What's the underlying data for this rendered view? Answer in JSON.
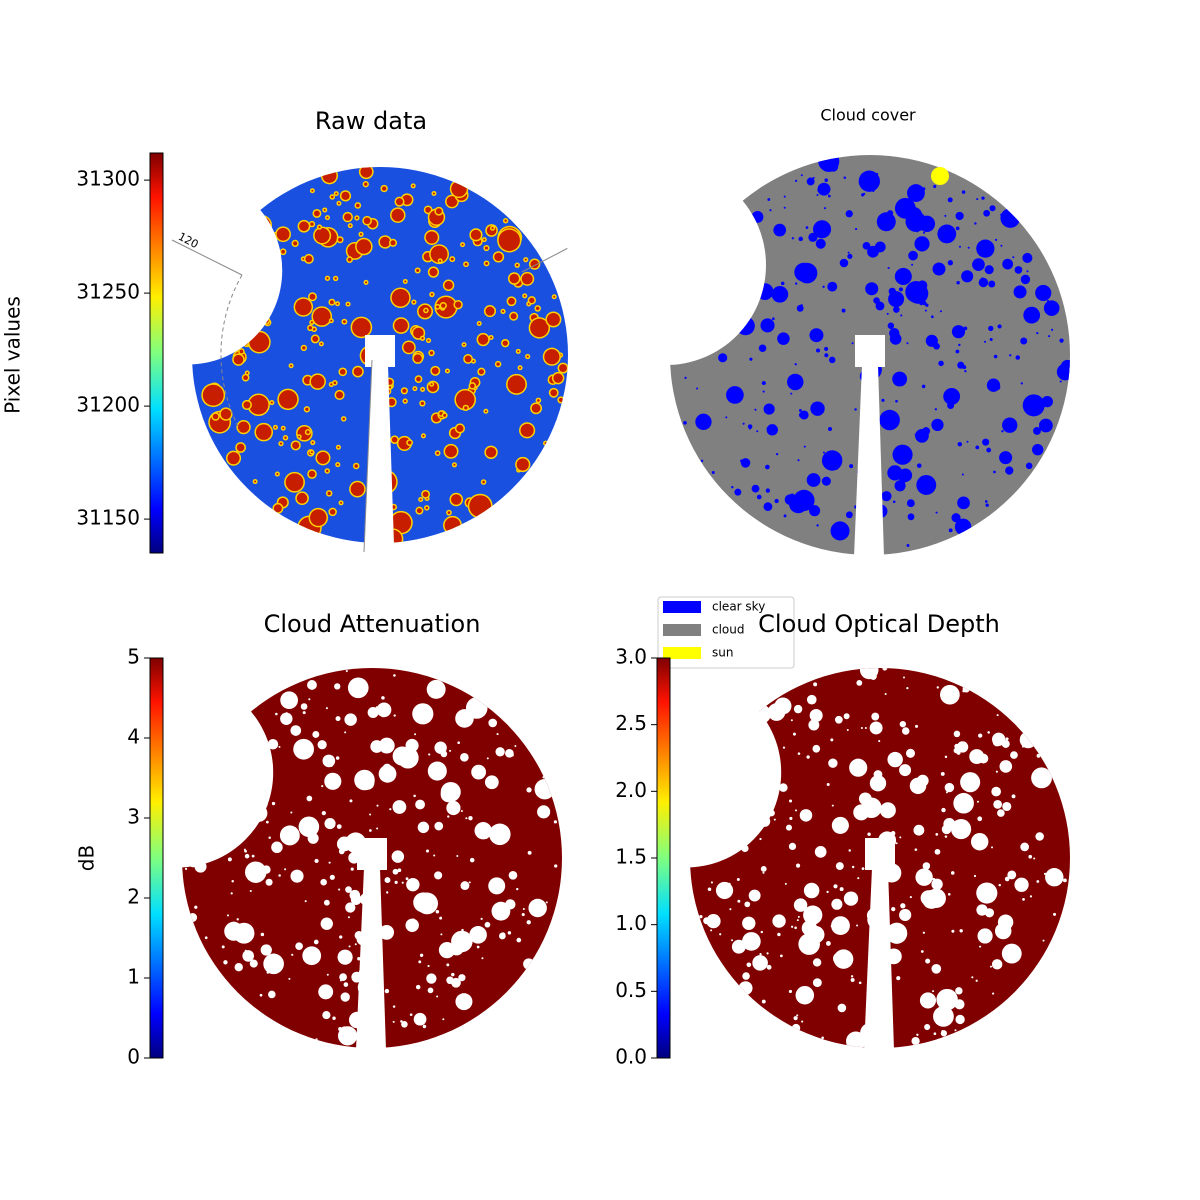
{
  "chart_data": [
    {
      "type": "image",
      "title": "Raw data",
      "colorbar_label": "Pixel values",
      "colormap": "jet",
      "clim": [
        31135,
        31312
      ],
      "cticks": [
        31150,
        31200,
        31250,
        31300
      ],
      "annotation": "120"
    },
    {
      "type": "image",
      "title": "Cloud cover",
      "legend": "lower left",
      "series": [
        {
          "name": "clear sky",
          "color": "#0000ff"
        },
        {
          "name": "cloud",
          "color": "#808080"
        },
        {
          "name": "sun",
          "color": "#ffff00"
        }
      ]
    },
    {
      "type": "image",
      "title": "Cloud Attenuation",
      "colorbar_label": "dB",
      "colormap": "jet",
      "clim": [
        0,
        5
      ],
      "cticks": [
        0,
        1,
        2,
        3,
        4,
        5
      ]
    },
    {
      "type": "image",
      "title": "Cloud Optical Depth",
      "colormap": "jet",
      "clim": [
        0,
        3
      ],
      "cticks": [
        {
          "value": 0,
          "label": "0.0"
        },
        {
          "value": 0.5,
          "label": "0.5"
        },
        {
          "value": 1,
          "label": "1.0"
        },
        {
          "value": 1.5,
          "label": "1.5"
        },
        {
          "value": 2,
          "label": "2.0"
        },
        {
          "value": 2.5,
          "label": "2.5"
        },
        {
          "value": 3,
          "label": "3.0"
        }
      ]
    }
  ]
}
